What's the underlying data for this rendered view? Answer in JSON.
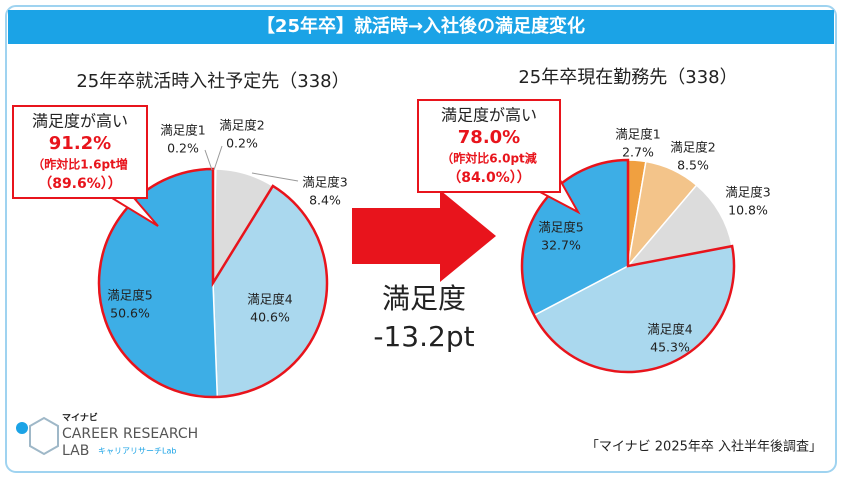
{
  "header": {
    "title": "【25年卒】就活時→入社後の満足度変化"
  },
  "chart_data": [
    {
      "type": "pie",
      "title": "25年卒就活時入社予定先（338）",
      "categories": [
        "満足度1",
        "満足度2",
        "満足度3",
        "満足度4",
        "満足度5"
      ],
      "values": [
        0.2,
        0.2,
        8.4,
        40.6,
        50.6
      ],
      "value_labels": [
        "0.2%",
        "0.2%",
        "8.4%",
        "40.6%",
        "50.6%"
      ],
      "colors": [
        "#f0a040",
        "#f3c48a",
        "#dcdcdc",
        "#aad8ee",
        "#3daee6"
      ],
      "callout": {
        "label": "満足度が高い",
        "value": "91.2%",
        "note": "（昨対比1.6pt増",
        "note2": "（89.6%））"
      }
    },
    {
      "type": "pie",
      "title": "25年卒現在勤務先（338）",
      "categories": [
        "満足度1",
        "満足度2",
        "満足度3",
        "満足度4",
        "満足度5"
      ],
      "values": [
        2.7,
        8.5,
        10.8,
        45.3,
        32.7
      ],
      "value_labels": [
        "2.7%",
        "8.5%",
        "10.8%",
        "45.3%",
        "32.7%"
      ],
      "colors": [
        "#f0a040",
        "#f3c48a",
        "#dcdcdc",
        "#aad8ee",
        "#3daee6"
      ],
      "callout": {
        "label": "満足度が高い",
        "value": "78.0%",
        "note": "（昨対比6.0pt減",
        "note2": "（84.0%））"
      }
    }
  ],
  "comparison": {
    "label": "満足度",
    "value": "-13.2pt"
  },
  "logo": {
    "brand": "マイナビ",
    "line1": "CAREER RESEARCH",
    "line2": "LAB",
    "sub": "キャリアリサーチLab"
  },
  "source": "「マイナビ 2025年卒 入社半年後調査」"
}
